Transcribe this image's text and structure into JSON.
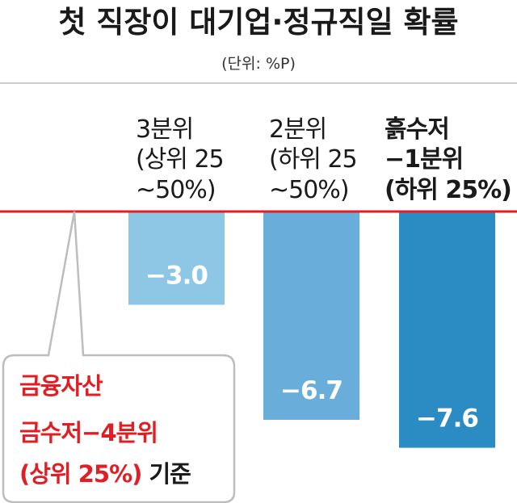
{
  "chart_data": {
    "type": "bar",
    "title": "첫 직장이 대기업·정규직일 확률",
    "unit_label": "(단위: %P)",
    "categories": [
      {
        "lines": [
          "3분위",
          "(상위 25",
          "~50%)"
        ],
        "bold": false
      },
      {
        "lines": [
          "2분위",
          "(하위 25",
          "~50%)"
        ],
        "bold": false
      },
      {
        "lines": [
          "흙수저",
          "−1분위",
          "(하위 25%)"
        ],
        "bold": true
      }
    ],
    "values": [
      -3.0,
      -6.7,
      -7.6
    ],
    "value_labels": [
      "−3.0",
      "−6.7",
      "−7.6"
    ],
    "bar_colors": [
      "#8ec6e6",
      "#69addb",
      "#2b8cc4"
    ],
    "ylim": [
      -8.5,
      0
    ],
    "grid": false,
    "baseline_color": "#e01e24",
    "annotation": {
      "line1": "금융자산",
      "line2": "금수저−4분위",
      "line3a": "(상위 25%)",
      "line3b": " 기준"
    }
  }
}
